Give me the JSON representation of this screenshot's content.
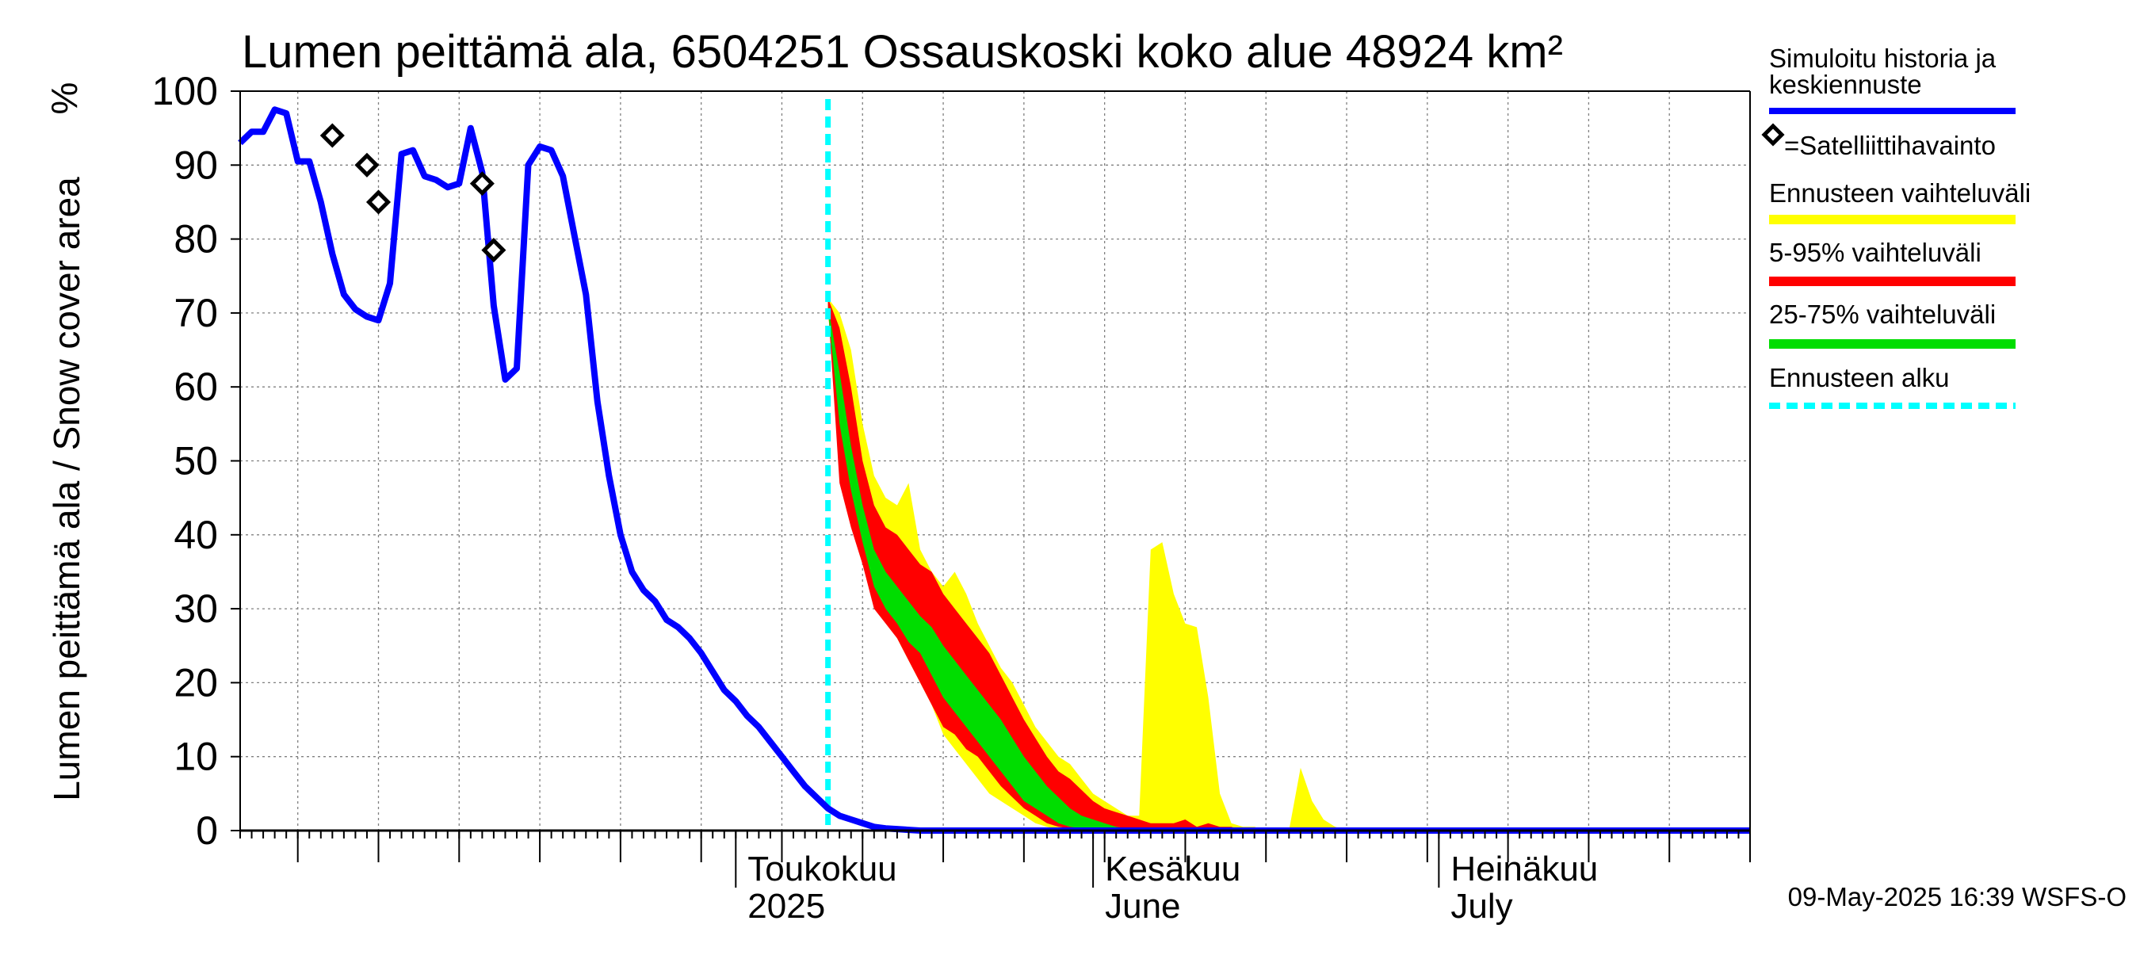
{
  "chart_data": {
    "type": "area",
    "title": "Lumen peittämä ala, 6504251 Ossauskoski koko alue 48924 km²",
    "ylabel": "Lumen peittämä ala / Snow cover area",
    "yunit": "%",
    "ylim": [
      0,
      100
    ],
    "yticks": [
      0,
      10,
      20,
      30,
      40,
      50,
      60,
      70,
      80,
      90,
      100
    ],
    "xlim": [
      "2025-03-19",
      "2025-07-28"
    ],
    "grid": true,
    "x_labels": [
      {
        "date": "2025-05-01",
        "line1": "Toukokuu",
        "line2": "2025"
      },
      {
        "date": "2025-06-01",
        "line1": "Kesäkuu",
        "line2": "June"
      },
      {
        "date": "2025-07-01",
        "line1": "Heinäkuu",
        "line2": "July"
      }
    ],
    "forecast_start": "2025-05-09",
    "timestamp": "09-May-2025 16:39 WSFS-O",
    "colors": {
      "history": "#0000ff",
      "full_range": "#ffff00",
      "p5_95": "#ff0000",
      "p25_75": "#00dd00",
      "forecast_start": "#00ffff",
      "grid": "#808080"
    },
    "legend": [
      {
        "label": "Simuloitu historia ja keskiennuste",
        "style": "line",
        "color": "#0000ff"
      },
      {
        "label": "=Satelliittihavainto",
        "style": "diamond",
        "color": "#000000"
      },
      {
        "label": "Ennusteen vaihteluväli",
        "style": "band",
        "color": "#ffff00"
      },
      {
        "label": "5-95% vaihteluväli",
        "style": "band",
        "color": "#ff0000"
      },
      {
        "label": "25-75% vaihteluväli",
        "style": "band",
        "color": "#00dd00"
      },
      {
        "label": "Ennusteen alku",
        "style": "dashed",
        "color": "#00ffff"
      }
    ],
    "series": [
      {
        "name": "Simuloitu historia ja keskiennuste",
        "x": [
          "2025-03-19",
          "2025-03-20",
          "2025-03-21",
          "2025-03-22",
          "2025-03-23",
          "2025-03-24",
          "2025-03-25",
          "2025-03-26",
          "2025-03-27",
          "2025-03-28",
          "2025-03-29",
          "2025-03-30",
          "2025-03-31",
          "2025-04-01",
          "2025-04-02",
          "2025-04-03",
          "2025-04-04",
          "2025-04-05",
          "2025-04-06",
          "2025-04-07",
          "2025-04-08",
          "2025-04-09",
          "2025-04-10",
          "2025-04-11",
          "2025-04-12",
          "2025-04-13",
          "2025-04-14",
          "2025-04-15",
          "2025-04-16",
          "2025-04-17",
          "2025-04-18",
          "2025-04-19",
          "2025-04-20",
          "2025-04-21",
          "2025-04-22",
          "2025-04-23",
          "2025-04-24",
          "2025-04-25",
          "2025-04-26",
          "2025-04-27",
          "2025-04-28",
          "2025-04-29",
          "2025-04-30",
          "2025-05-01",
          "2025-05-02",
          "2025-05-03",
          "2025-05-04",
          "2025-05-05",
          "2025-05-06",
          "2025-05-07",
          "2025-05-08",
          "2025-05-09",
          "2025-05-10",
          "2025-05-11",
          "2025-05-12",
          "2025-05-13",
          "2025-05-14",
          "2025-05-15",
          "2025-05-16",
          "2025-05-17",
          "2025-05-18",
          "2025-05-19",
          "2025-05-20",
          "2025-05-21",
          "2025-05-22",
          "2025-05-23",
          "2025-05-24",
          "2025-05-25",
          "2025-05-26",
          "2025-05-27",
          "2025-05-28",
          "2025-05-29",
          "2025-05-30",
          "2025-05-31",
          "2025-06-01",
          "2025-06-02",
          "2025-06-03",
          "2025-06-04",
          "2025-06-05",
          "2025-06-06",
          "2025-06-07",
          "2025-06-08",
          "2025-06-10",
          "2025-06-15",
          "2025-06-20",
          "2025-06-30",
          "2025-07-10",
          "2025-07-20",
          "2025-07-28"
        ],
        "y": [
          93,
          94.5,
          94.5,
          97.5,
          97,
          90.5,
          90.5,
          85,
          78,
          72.5,
          70.5,
          69.5,
          69,
          74,
          91.5,
          92,
          88.5,
          88,
          87,
          87.5,
          95,
          89,
          71,
          61,
          62.5,
          90,
          92.5,
          92,
          88.5,
          80.5,
          72.5,
          58,
          48,
          40,
          35,
          32.5,
          31,
          28.5,
          27.5,
          26,
          24,
          21.5,
          19,
          17.5,
          15.5,
          14,
          12,
          10,
          8,
          6,
          4.5,
          3,
          2,
          1.5,
          1,
          0.5,
          0.3,
          0.2,
          0.1,
          0,
          0,
          0,
          0,
          0,
          0,
          0,
          0,
          0,
          0,
          0,
          0,
          0,
          0,
          0,
          0,
          0,
          0,
          0,
          0,
          0,
          0,
          0,
          0,
          0,
          0,
          0,
          0,
          0,
          0
        ]
      }
    ],
    "band_dates": [
      "2025-05-09",
      "2025-05-10",
      "2025-05-11",
      "2025-05-12",
      "2025-05-13",
      "2025-05-14",
      "2025-05-15",
      "2025-05-16",
      "2025-05-17",
      "2025-05-18",
      "2025-05-19",
      "2025-05-20",
      "2025-05-21",
      "2025-05-22",
      "2025-05-23",
      "2025-05-24",
      "2025-05-25",
      "2025-05-26",
      "2025-05-27",
      "2025-05-28",
      "2025-05-29",
      "2025-05-30",
      "2025-05-31",
      "2025-06-01",
      "2025-06-02",
      "2025-06-03",
      "2025-06-04",
      "2025-06-05",
      "2025-06-06",
      "2025-06-07",
      "2025-06-08",
      "2025-06-09",
      "2025-06-10",
      "2025-06-11",
      "2025-06-12",
      "2025-06-13",
      "2025-06-14",
      "2025-06-15",
      "2025-06-16",
      "2025-06-17",
      "2025-06-18",
      "2025-06-19",
      "2025-06-20",
      "2025-06-21",
      "2025-06-22",
      "2025-06-23",
      "2025-06-24",
      "2025-06-25",
      "2025-06-26"
    ],
    "bands": {
      "full_range": {
        "upper": [
          72,
          70,
          65,
          55,
          48,
          45,
          44,
          47,
          38,
          35,
          33,
          35,
          32,
          28,
          25,
          22,
          20,
          17,
          14,
          12,
          10,
          9,
          7,
          5,
          4,
          3,
          2,
          2,
          38,
          39,
          32,
          28,
          27.5,
          18,
          5,
          1,
          0.5,
          0.5,
          0,
          0,
          0,
          8.5,
          4,
          1.5,
          0.5,
          0,
          0,
          0,
          0
        ],
        "lower": [
          70,
          55,
          45,
          40,
          33,
          29,
          26,
          23,
          20,
          17,
          13,
          11,
          9,
          7,
          5,
          4,
          3,
          2,
          1,
          0.5,
          0.2,
          0,
          0,
          0,
          0,
          0,
          0,
          0,
          0,
          0,
          0,
          0,
          0,
          0,
          0,
          0,
          0,
          0,
          0,
          0,
          0,
          0,
          0,
          0,
          0,
          0,
          0,
          0,
          0
        ]
      },
      "p5_95": {
        "upper": [
          72,
          68,
          60,
          50,
          44,
          41,
          40,
          38,
          36,
          35,
          32,
          30,
          28,
          26,
          24,
          21,
          18,
          15,
          12.5,
          10,
          8,
          7,
          5.5,
          4,
          3,
          2.5,
          2,
          1.5,
          1,
          1,
          1,
          1.5,
          0.5,
          1,
          0.5,
          0.5,
          0,
          0,
          0,
          0,
          0,
          0,
          0,
          0,
          0,
          0,
          0,
          0,
          0
        ],
        "lower": [
          71,
          47,
          41,
          36,
          30,
          28,
          26,
          23,
          20,
          17,
          14,
          13,
          11,
          10,
          8,
          6,
          4.5,
          3,
          2,
          1,
          0.5,
          0.3,
          0,
          0,
          0,
          0,
          0,
          0,
          0,
          0,
          0,
          0,
          0,
          0,
          0,
          0,
          0,
          0,
          0,
          0,
          0,
          0,
          0,
          0,
          0,
          0,
          0,
          0,
          0
        ]
      },
      "p25_75": {
        "upper": [
          71,
          62,
          52,
          44,
          38,
          35,
          33,
          31,
          29,
          27.5,
          25,
          23,
          21,
          19,
          17,
          15,
          12.5,
          10,
          8,
          6,
          4.5,
          3,
          2,
          1.5,
          1,
          0.5,
          0.3,
          0.2,
          0.1,
          0,
          0,
          0,
          0,
          0,
          0,
          0,
          0,
          0,
          0,
          0,
          0,
          0,
          0,
          0,
          0,
          0,
          0,
          0,
          0
        ],
        "lower": [
          70.5,
          55,
          46,
          39,
          33,
          30,
          28,
          25.5,
          24,
          21,
          18,
          16,
          14,
          12,
          10,
          8,
          6,
          4,
          3,
          2,
          1,
          0.5,
          0.3,
          0,
          0,
          0,
          0,
          0,
          0,
          0,
          0,
          0,
          0,
          0,
          0,
          0,
          0,
          0,
          0,
          0,
          0,
          0,
          0,
          0,
          0,
          0,
          0,
          0,
          0
        ]
      }
    },
    "satellite_observations": [
      {
        "date": "2025-03-27",
        "value": 94
      },
      {
        "date": "2025-03-30",
        "value": 90
      },
      {
        "date": "2025-03-31",
        "value": 85
      },
      {
        "date": "2025-04-09",
        "value": 87.5
      },
      {
        "date": "2025-04-10",
        "value": 78.5
      }
    ]
  }
}
